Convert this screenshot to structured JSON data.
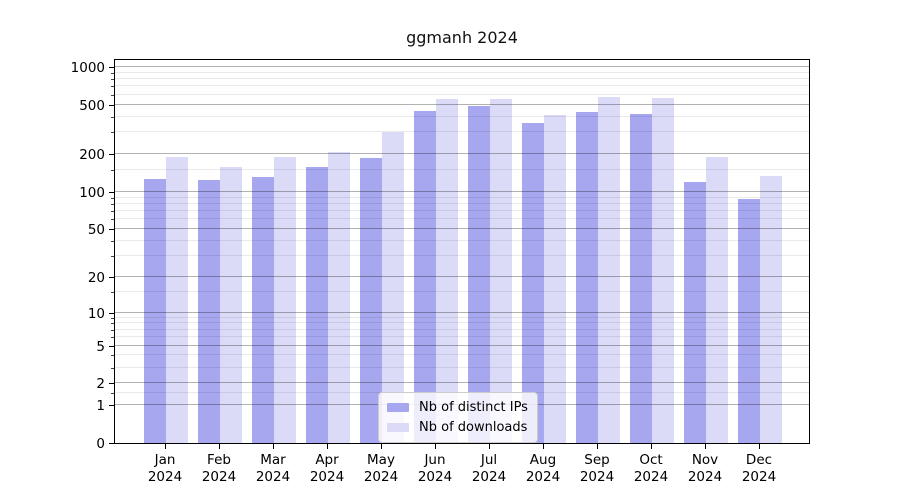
{
  "title": "ggmanh 2024",
  "chart_data": {
    "type": "bar",
    "title": "ggmanh 2024",
    "categories": [
      "Jan",
      "Feb",
      "Mar",
      "Apr",
      "May",
      "Jun",
      "Jul",
      "Aug",
      "Sep",
      "Oct",
      "Nov",
      "Dec"
    ],
    "x_year_label": "2024",
    "series": [
      {
        "name": "Nb of distinct IPs",
        "color": "#a7a7ef",
        "values": [
          126,
          124,
          132,
          158,
          187,
          448,
          491,
          357,
          435,
          420,
          119,
          87
        ]
      },
      {
        "name": "Nb of downloads",
        "color": "#dbdbf8",
        "values": [
          191,
          157,
          189,
          210,
          300,
          553,
          553,
          416,
          571,
          565,
          192,
          133
        ]
      }
    ],
    "yscale": "log1p",
    "ylim": [
      0,
      1180
    ],
    "y_major_ticks": [
      0,
      1,
      2,
      5,
      10,
      20,
      50,
      100,
      200,
      500,
      1000
    ],
    "y_minor_ticks": [
      1.5,
      3,
      4,
      6,
      7,
      8,
      9,
      15,
      30,
      40,
      60,
      70,
      80,
      90,
      150,
      300,
      400,
      600,
      700,
      800,
      900
    ],
    "grid": true,
    "legend_position": "lower center",
    "xlabel": "",
    "ylabel": ""
  },
  "colors": {
    "major_grid": "#b3b3b3",
    "minor_grid": "#e8e8e8",
    "axis": "#000000",
    "background": "#ffffff"
  }
}
